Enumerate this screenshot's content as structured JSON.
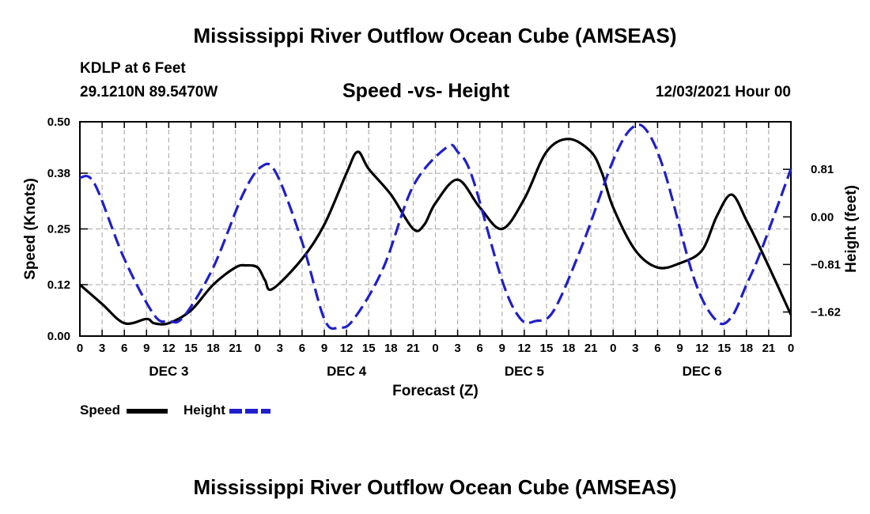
{
  "page": {
    "title_top": "Mississippi River Outflow Ocean Cube (AMSEAS)",
    "title_bottom": "Mississippi River Outflow Ocean Cube (AMSEAS)",
    "station": "KDLP at 6 Feet",
    "coords": "29.1210N  89.5470W",
    "date": "12/03/2021 Hour 00"
  },
  "legend": {
    "speed_label": "Speed",
    "height_label": "Height"
  },
  "colors": {
    "speed": "#000000",
    "height": "#1f1fcc",
    "grid": "#b0b0b0"
  },
  "chart_data": {
    "type": "line",
    "title": "Speed -vs- Height",
    "xlabel": "Forecast (Z)",
    "ylabel_left": "Speed (Knots)",
    "ylabel_right": "Height (feet)",
    "x_range": [
      0,
      96
    ],
    "x_tick_labels": [
      "0",
      "3",
      "6",
      "9",
      "12",
      "15",
      "18",
      "21",
      "0",
      "3",
      "6",
      "9",
      "12",
      "15",
      "18",
      "21",
      "0",
      "3",
      "6",
      "9",
      "12",
      "15",
      "18",
      "21",
      "0",
      "3",
      "6",
      "9",
      "12",
      "15",
      "18",
      "21",
      "0"
    ],
    "day_labels": [
      {
        "label": "DEC 3",
        "hour": 12
      },
      {
        "label": "DEC 4",
        "hour": 36
      },
      {
        "label": "DEC 5",
        "hour": 60
      },
      {
        "label": "DEC 6",
        "hour": 84
      }
    ],
    "y_left": {
      "range": [
        0,
        0.5
      ],
      "ticks": [
        0.0,
        0.12,
        0.25,
        0.38,
        0.5
      ],
      "tick_labels": [
        "0.00",
        "0.12",
        "0.25",
        "0.38",
        "0.50"
      ]
    },
    "y_right": {
      "range": [
        -2.03,
        1.62
      ],
      "ticks": [
        0.81,
        0.0,
        -0.81,
        -1.62
      ],
      "tick_labels": [
        "0.81",
        "0.00",
        "−0.81",
        "−1.62"
      ]
    },
    "grid": true,
    "series": [
      {
        "name": "Speed",
        "axis": "left",
        "style": "solid",
        "x": [
          0,
          3,
          6,
          9,
          10,
          12,
          15,
          18,
          21,
          22.5,
          24,
          25,
          26,
          30,
          33,
          36,
          37.5,
          39,
          42,
          45,
          46.5,
          48,
          51,
          54,
          57,
          60,
          63,
          66,
          69,
          70.5,
          72,
          75,
          78,
          81,
          84,
          86,
          88,
          90,
          92,
          96
        ],
        "y": [
          0.12,
          0.075,
          0.03,
          0.04,
          0.03,
          0.03,
          0.06,
          0.12,
          0.16,
          0.165,
          0.16,
          0.13,
          0.11,
          0.18,
          0.26,
          0.38,
          0.43,
          0.39,
          0.33,
          0.25,
          0.26,
          0.31,
          0.365,
          0.3,
          0.25,
          0.32,
          0.43,
          0.46,
          0.43,
          0.38,
          0.3,
          0.2,
          0.16,
          0.17,
          0.2,
          0.28,
          0.33,
          0.27,
          0.2,
          0.05
        ]
      },
      {
        "name": "Height",
        "axis": "left",
        "style": "dashed",
        "x": [
          0,
          2,
          6,
          10,
          12,
          14,
          18,
          22,
          24.5,
          26.5,
          30,
          33,
          35,
          37,
          41,
          45,
          49.5,
          51,
          53,
          57,
          59.5,
          61.5,
          64,
          68,
          72,
          74.5,
          76.5,
          79,
          83,
          86,
          88,
          90,
          92,
          96
        ],
        "y": [
          0.37,
          0.355,
          0.18,
          0.05,
          0.035,
          0.045,
          0.16,
          0.33,
          0.395,
          0.38,
          0.22,
          0.04,
          0.02,
          0.04,
          0.16,
          0.35,
          0.44,
          0.43,
          0.37,
          0.13,
          0.04,
          0.035,
          0.06,
          0.22,
          0.41,
          0.485,
          0.48,
          0.38,
          0.13,
          0.035,
          0.045,
          0.12,
          0.2,
          0.39
        ]
      }
    ]
  }
}
